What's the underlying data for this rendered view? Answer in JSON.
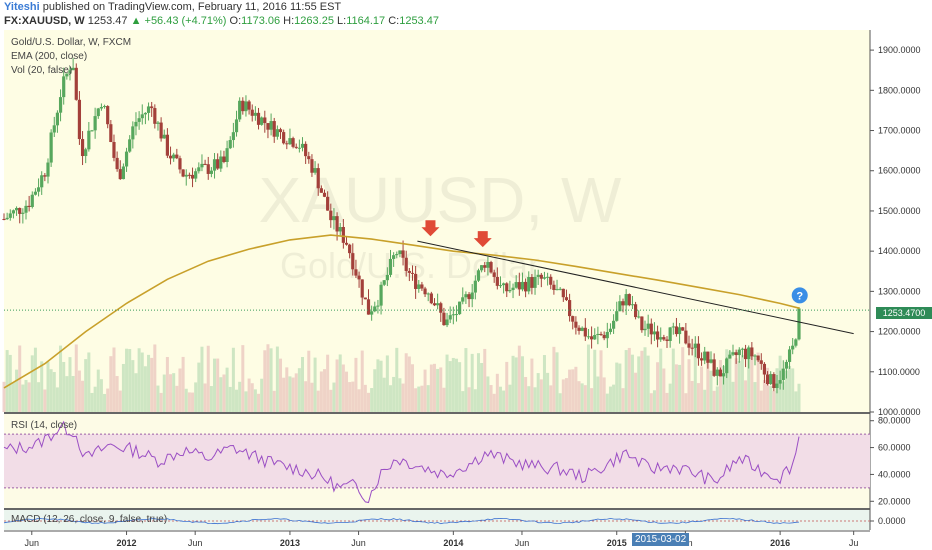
{
  "header": {
    "author": "Yiteshi",
    "published_text": "published on TradingView.com, February 11, 2016 11:55 EST",
    "symbol": "FX:XAUUSD, W",
    "last": "1253.47",
    "change": "+56.43 (+4.71%)",
    "o_label": "O:",
    "o": "1173.06",
    "h_label": "H:",
    "h": "1263.25",
    "l_label": "L:",
    "l": "1164.17",
    "c_label": "C:",
    "c": "1253.47"
  },
  "legend": {
    "line1": "Gold/U.S. Dollar, W, FXCM",
    "line2": "EMA (200, close)",
    "line3": "Vol (20, false)"
  },
  "watermark": {
    "big": "XAUUSD, W",
    "small": "Gold/U.S. Dollar"
  },
  "last_price_label": "1253.4700",
  "rsi_label": "RSI (14, close)",
  "macd_label": "MACD (12, 26, close, 9, false, true)",
  "date_tag": "2015-03-02",
  "icons": {
    "signal_arrow": "down-arrow-icon",
    "question": "question-icon"
  },
  "colors": {
    "bull": "#57a75d",
    "bear": "#a3403a",
    "ema": "#c8a02a",
    "rsi": "#9b4fc4",
    "bg": "#fefde4",
    "macd_bg": "#eaf4ee"
  },
  "chart_data": [
    {
      "type": "candlestick",
      "title": "Gold/U.S. Dollar, W, FXCM",
      "y_ticks": [
        "1900.0000",
        "1800.0000",
        "1700.0000",
        "1600.0000",
        "1500.0000",
        "1400.0000",
        "1300.0000",
        "1200.0000",
        "1100.0000",
        "1000.0000"
      ],
      "ylim": [
        1000,
        1950
      ],
      "x_ticks": [
        "Jun",
        "2012",
        "Jun",
        "2013",
        "Jun",
        "2014",
        "Jun",
        "2015",
        "Jun",
        "2016",
        "Ju"
      ],
      "x_tick_dates": [
        2011.42,
        2012.0,
        2012.42,
        2013.0,
        2013.42,
        2014.0,
        2014.42,
        2015.0,
        2015.42,
        2016.0,
        2016.45
      ],
      "xlim": [
        2011.25,
        2016.55
      ],
      "price_path": [
        [
          2011.25,
          1480
        ],
        [
          2011.4,
          1520
        ],
        [
          2011.5,
          1600
        ],
        [
          2011.6,
          1800
        ],
        [
          2011.67,
          1880
        ],
        [
          2011.72,
          1640
        ],
        [
          2011.85,
          1780
        ],
        [
          2011.95,
          1580
        ],
        [
          2012.05,
          1720
        ],
        [
          2012.15,
          1760
        ],
        [
          2012.25,
          1650
        ],
        [
          2012.35,
          1590
        ],
        [
          2012.45,
          1600
        ],
        [
          2012.6,
          1620
        ],
        [
          2012.7,
          1770
        ],
        [
          2012.85,
          1720
        ],
        [
          2012.95,
          1690
        ],
        [
          2013.05,
          1670
        ],
        [
          2013.15,
          1600
        ],
        [
          2013.25,
          1480
        ],
        [
          2013.35,
          1420
        ],
        [
          2013.48,
          1250
        ],
        [
          2013.55,
          1290
        ],
        [
          2013.65,
          1400
        ],
        [
          2013.75,
          1330
        ],
        [
          2013.85,
          1300
        ],
        [
          2013.95,
          1220
        ],
        [
          2014.05,
          1260
        ],
        [
          2014.2,
          1380
        ],
        [
          2014.3,
          1300
        ],
        [
          2014.45,
          1320
        ],
        [
          2014.55,
          1330
        ],
        [
          2014.65,
          1290
        ],
        [
          2014.75,
          1220
        ],
        [
          2014.85,
          1180
        ],
        [
          2014.95,
          1200
        ],
        [
          2015.05,
          1290
        ],
        [
          2015.15,
          1210
        ],
        [
          2015.25,
          1200
        ],
        [
          2015.4,
          1190
        ],
        [
          2015.55,
          1130
        ],
        [
          2015.62,
          1090
        ],
        [
          2015.75,
          1150
        ],
        [
          2015.85,
          1140
        ],
        [
          2015.95,
          1070
        ],
        [
          2016.02,
          1100
        ],
        [
          2016.08,
          1160
        ],
        [
          2016.12,
          1253
        ]
      ],
      "ema_200": [
        [
          2011.25,
          1060
        ],
        [
          2011.5,
          1120
        ],
        [
          2011.75,
          1200
        ],
        [
          2012.0,
          1270
        ],
        [
          2012.25,
          1330
        ],
        [
          2012.5,
          1375
        ],
        [
          2012.75,
          1405
        ],
        [
          2013.0,
          1428
        ],
        [
          2013.25,
          1440
        ],
        [
          2013.5,
          1430
        ],
        [
          2013.75,
          1415
        ],
        [
          2014.0,
          1400
        ],
        [
          2014.25,
          1390
        ],
        [
          2014.5,
          1378
        ],
        [
          2014.75,
          1362
        ],
        [
          2015.0,
          1345
        ],
        [
          2015.25,
          1328
        ],
        [
          2015.5,
          1310
        ],
        [
          2015.75,
          1292
        ],
        [
          2016.0,
          1270
        ],
        [
          2016.12,
          1258
        ]
      ],
      "trendline": [
        [
          2013.78,
          1425
        ],
        [
          2016.45,
          1195
        ]
      ],
      "volume_note": "volume bars in lower part of price pane"
    },
    {
      "type": "line",
      "name": "RSI (14, close)",
      "y_ticks": [
        "80.0000",
        "60.0000",
        "40.0000",
        "20.0000"
      ],
      "ylim": [
        15,
        85
      ],
      "band": [
        30,
        70
      ],
      "x": [
        2011.25,
        2011.45,
        2011.6,
        2011.68,
        2011.75,
        2011.9,
        2012.05,
        2012.2,
        2012.35,
        2012.5,
        2012.65,
        2012.75,
        2012.9,
        2013.05,
        2013.2,
        2013.3,
        2013.4,
        2013.48,
        2013.55,
        2013.65,
        2013.8,
        2013.95,
        2014.1,
        2014.2,
        2014.35,
        2014.5,
        2014.65,
        2014.8,
        2014.95,
        2015.05,
        2015.2,
        2015.35,
        2015.5,
        2015.6,
        2015.75,
        2015.9,
        2016.0,
        2016.08,
        2016.12
      ],
      "values": [
        58,
        62,
        75,
        72,
        52,
        62,
        58,
        50,
        58,
        52,
        60,
        55,
        48,
        44,
        38,
        30,
        32,
        22,
        40,
        52,
        46,
        40,
        48,
        56,
        50,
        46,
        44,
        38,
        48,
        56,
        44,
        46,
        40,
        34,
        52,
        42,
        38,
        48,
        70
      ]
    },
    {
      "type": "line",
      "name": "MACD (12, 26, close, 9, false, true)",
      "y_ticks": [
        "0.0000"
      ],
      "note": "histogram and lines near zero"
    }
  ]
}
